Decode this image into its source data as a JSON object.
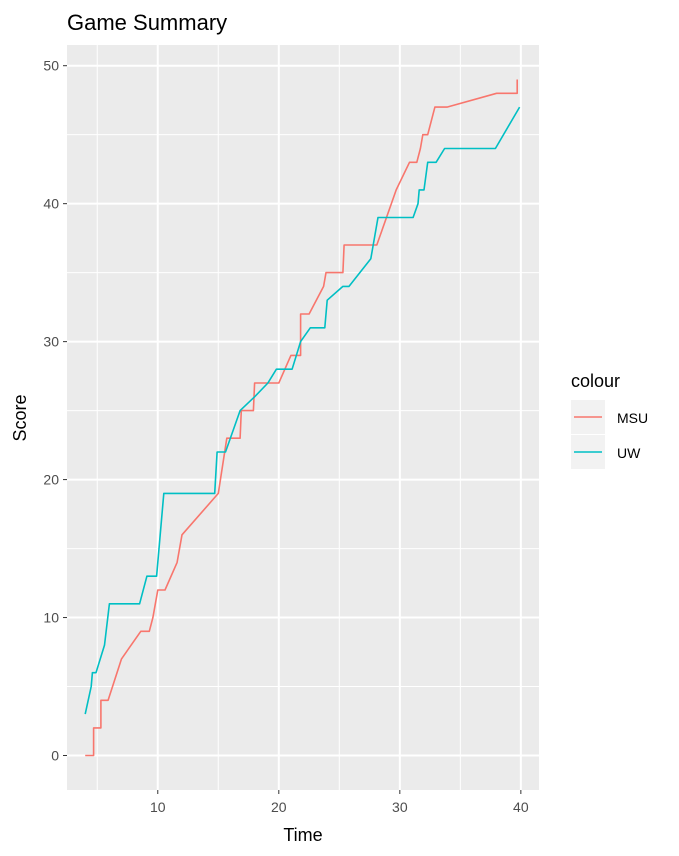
{
  "chart_data": {
    "type": "line",
    "title": "Game Summary",
    "xlabel": "Time",
    "ylabel": "Score",
    "xlim": [
      2.5,
      41.5
    ],
    "ylim": [
      -2.5,
      51.5
    ],
    "xticks": [
      10,
      20,
      30,
      40
    ],
    "yticks": [
      0,
      10,
      20,
      30,
      40,
      50
    ],
    "grid": true,
    "legend": {
      "title": "colour",
      "position": "right"
    },
    "series": [
      {
        "name": "MSU",
        "color": "#F8766D",
        "points": [
          [
            4.0,
            0
          ],
          [
            4.7,
            0
          ],
          [
            4.7,
            2
          ],
          [
            5.3,
            2
          ],
          [
            5.3,
            4
          ],
          [
            5.9,
            4
          ],
          [
            7.0,
            7
          ],
          [
            8.6,
            9
          ],
          [
            9.3,
            9
          ],
          [
            9.6,
            10
          ],
          [
            10.0,
            12
          ],
          [
            10.6,
            12
          ],
          [
            11.6,
            14
          ],
          [
            12.0,
            16
          ],
          [
            15.0,
            19
          ],
          [
            15.7,
            23
          ],
          [
            16.8,
            23
          ],
          [
            16.9,
            25
          ],
          [
            17.9,
            25
          ],
          [
            18.0,
            27
          ],
          [
            20.0,
            27
          ],
          [
            21.0,
            29
          ],
          [
            21.8,
            29
          ],
          [
            21.8,
            32
          ],
          [
            22.5,
            32
          ],
          [
            23.7,
            34
          ],
          [
            23.9,
            35
          ],
          [
            25.3,
            35
          ],
          [
            25.4,
            37
          ],
          [
            28.1,
            37
          ],
          [
            29.7,
            41
          ],
          [
            30.8,
            43
          ],
          [
            31.4,
            43
          ],
          [
            31.7,
            44
          ],
          [
            31.9,
            45
          ],
          [
            32.3,
            45
          ],
          [
            32.9,
            47
          ],
          [
            33.9,
            47
          ],
          [
            38.0,
            48
          ],
          [
            39.7,
            48
          ],
          [
            39.7,
            49
          ]
        ]
      },
      {
        "name": "UW",
        "color": "#00BFC4",
        "points": [
          [
            4.0,
            3
          ],
          [
            4.5,
            5
          ],
          [
            4.6,
            6
          ],
          [
            4.9,
            6
          ],
          [
            5.6,
            8
          ],
          [
            6.0,
            11
          ],
          [
            8.5,
            11
          ],
          [
            9.1,
            13
          ],
          [
            9.9,
            13
          ],
          [
            10.5,
            19
          ],
          [
            14.7,
            19
          ],
          [
            14.9,
            22
          ],
          [
            15.6,
            22
          ],
          [
            16.8,
            25
          ],
          [
            18.0,
            26
          ],
          [
            19.1,
            27
          ],
          [
            19.8,
            28
          ],
          [
            21.1,
            28
          ],
          [
            21.8,
            30
          ],
          [
            22.6,
            31
          ],
          [
            23.8,
            31
          ],
          [
            24.0,
            33
          ],
          [
            25.3,
            34
          ],
          [
            25.8,
            34
          ],
          [
            27.6,
            36
          ],
          [
            28.2,
            39
          ],
          [
            31.1,
            39
          ],
          [
            31.5,
            40
          ],
          [
            31.6,
            41
          ],
          [
            32.0,
            41
          ],
          [
            32.3,
            43
          ],
          [
            33.0,
            43
          ],
          [
            33.7,
            44
          ],
          [
            37.9,
            44
          ],
          [
            39.9,
            47
          ]
        ]
      }
    ]
  }
}
